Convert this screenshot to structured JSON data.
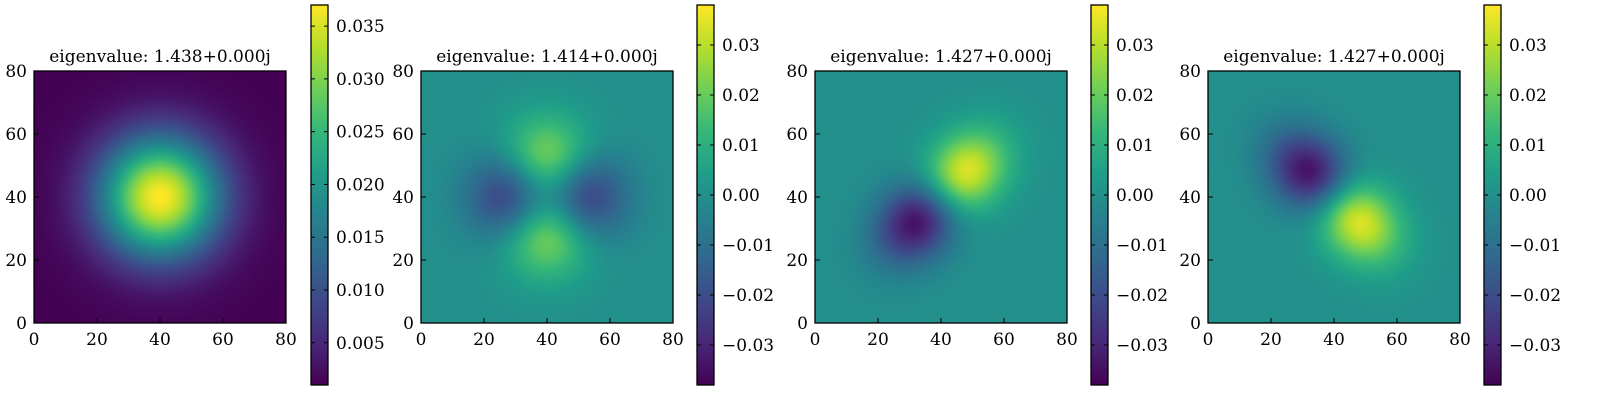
{
  "figure": {
    "colormap": "viridis",
    "colormap_stops": [
      "#440154",
      "#482878",
      "#3e4989",
      "#31688e",
      "#26828e",
      "#1f9e89",
      "#35b779",
      "#6ece58",
      "#b5de2b",
      "#fde725"
    ]
  },
  "chart_data": [
    {
      "type": "heatmap",
      "title": "eigenvalue: 1.438+0.000j",
      "mode": "radial",
      "xlim": [
        0,
        80
      ],
      "ylim": [
        0,
        80
      ],
      "xticks": [
        "0",
        "20",
        "40",
        "60",
        "80"
      ],
      "yticks": [
        "0",
        "20",
        "40",
        "60",
        "80"
      ],
      "colorbar": {
        "range": [
          0.001,
          0.037
        ],
        "ticks": [
          0.005,
          0.01,
          0.015,
          0.02,
          0.025,
          0.03,
          0.035
        ],
        "tick_labels": [
          "0.005",
          "0.010",
          "0.015",
          "0.020",
          "0.025",
          "0.030",
          "0.035"
        ]
      }
    },
    {
      "type": "heatmap",
      "title": "eigenvalue: 1.414+0.000j",
      "mode": "quad",
      "xlim": [
        0,
        80
      ],
      "ylim": [
        0,
        80
      ],
      "xticks": [
        "0",
        "20",
        "40",
        "60",
        "80"
      ],
      "yticks": [
        "0",
        "20",
        "40",
        "60",
        "80"
      ],
      "colorbar": {
        "range": [
          -0.038,
          0.038
        ],
        "ticks": [
          -0.03,
          -0.02,
          -0.01,
          0.0,
          0.01,
          0.02,
          0.03
        ],
        "tick_labels": [
          "−0.03",
          "−0.02",
          "−0.01",
          "0.00",
          "0.01",
          "0.02",
          "0.03"
        ]
      }
    },
    {
      "type": "heatmap",
      "title": "eigenvalue: 1.427+0.000j",
      "mode": "dipole_a",
      "xlim": [
        0,
        80
      ],
      "ylim": [
        0,
        80
      ],
      "xticks": [
        "0",
        "20",
        "40",
        "60",
        "80"
      ],
      "yticks": [
        "0",
        "20",
        "40",
        "60",
        "80"
      ],
      "colorbar": {
        "range": [
          -0.038,
          0.038
        ],
        "ticks": [
          -0.03,
          -0.02,
          -0.01,
          0.0,
          0.01,
          0.02,
          0.03
        ],
        "tick_labels": [
          "−0.03",
          "−0.02",
          "−0.01",
          "0.00",
          "0.01",
          "0.02",
          "0.03"
        ]
      }
    },
    {
      "type": "heatmap",
      "title": "eigenvalue: 1.427+0.000j",
      "mode": "dipole_b",
      "xlim": [
        0,
        80
      ],
      "ylim": [
        0,
        80
      ],
      "xticks": [
        "0",
        "20",
        "40",
        "60",
        "80"
      ],
      "yticks": [
        "0",
        "20",
        "40",
        "60",
        "80"
      ],
      "colorbar": {
        "range": [
          -0.038,
          0.038
        ],
        "ticks": [
          -0.03,
          -0.02,
          -0.01,
          0.0,
          0.01,
          0.02,
          0.03
        ],
        "tick_labels": [
          "−0.03",
          "−0.02",
          "−0.01",
          "0.00",
          "0.01",
          "0.02",
          "0.03"
        ]
      }
    }
  ]
}
